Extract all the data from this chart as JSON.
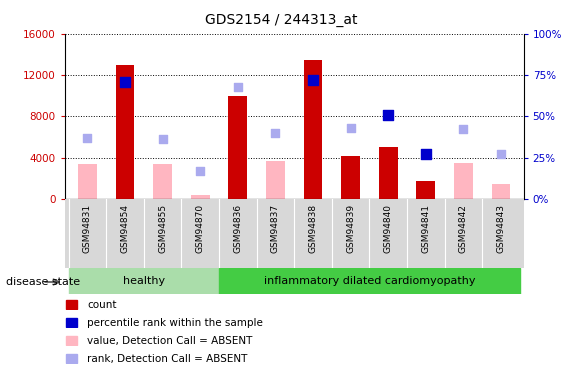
{
  "title": "GDS2154 / 244313_at",
  "samples": [
    "GSM94831",
    "GSM94854",
    "GSM94855",
    "GSM94870",
    "GSM94836",
    "GSM94837",
    "GSM94838",
    "GSM94839",
    "GSM94840",
    "GSM94841",
    "GSM94842",
    "GSM94843"
  ],
  "group_labels": [
    "healthy",
    "inflammatory dilated cardiomyopathy"
  ],
  "group_boundary": 4,
  "healthy_color": "#aaddaa",
  "cardio_color": "#44cc44",
  "count_values": [
    null,
    13000,
    null,
    null,
    10000,
    null,
    13500,
    4100,
    5000,
    1700,
    null,
    null
  ],
  "count_absent": [
    3400,
    null,
    3400,
    400,
    null,
    3700,
    null,
    null,
    null,
    null,
    3500,
    1400
  ],
  "percentile_values": [
    null,
    71,
    null,
    null,
    null,
    null,
    72,
    null,
    51,
    27,
    null,
    null
  ],
  "percentile_absent": [
    37,
    null,
    36,
    17,
    68,
    40,
    null,
    43,
    null,
    null,
    42,
    27
  ],
  "ylim_left": [
    0,
    16000
  ],
  "ylim_right": [
    0,
    100
  ],
  "yticks_left": [
    0,
    4000,
    8000,
    12000,
    16000
  ],
  "yticks_right": [
    0,
    25,
    50,
    75,
    100
  ],
  "count_color": "#cc0000",
  "count_absent_color": "#ffb6c1",
  "percentile_color": "#0000cc",
  "percentile_absent_color": "#aaaaee",
  "disease_state_label": "disease state",
  "legend_items": [
    {
      "color": "#cc0000",
      "label": "count",
      "type": "square"
    },
    {
      "color": "#0000cc",
      "label": "percentile rank within the sample",
      "type": "square"
    },
    {
      "color": "#ffb6c1",
      "label": "value, Detection Call = ABSENT",
      "type": "square"
    },
    {
      "color": "#aaaaee",
      "label": "rank, Detection Call = ABSENT",
      "type": "square"
    }
  ]
}
